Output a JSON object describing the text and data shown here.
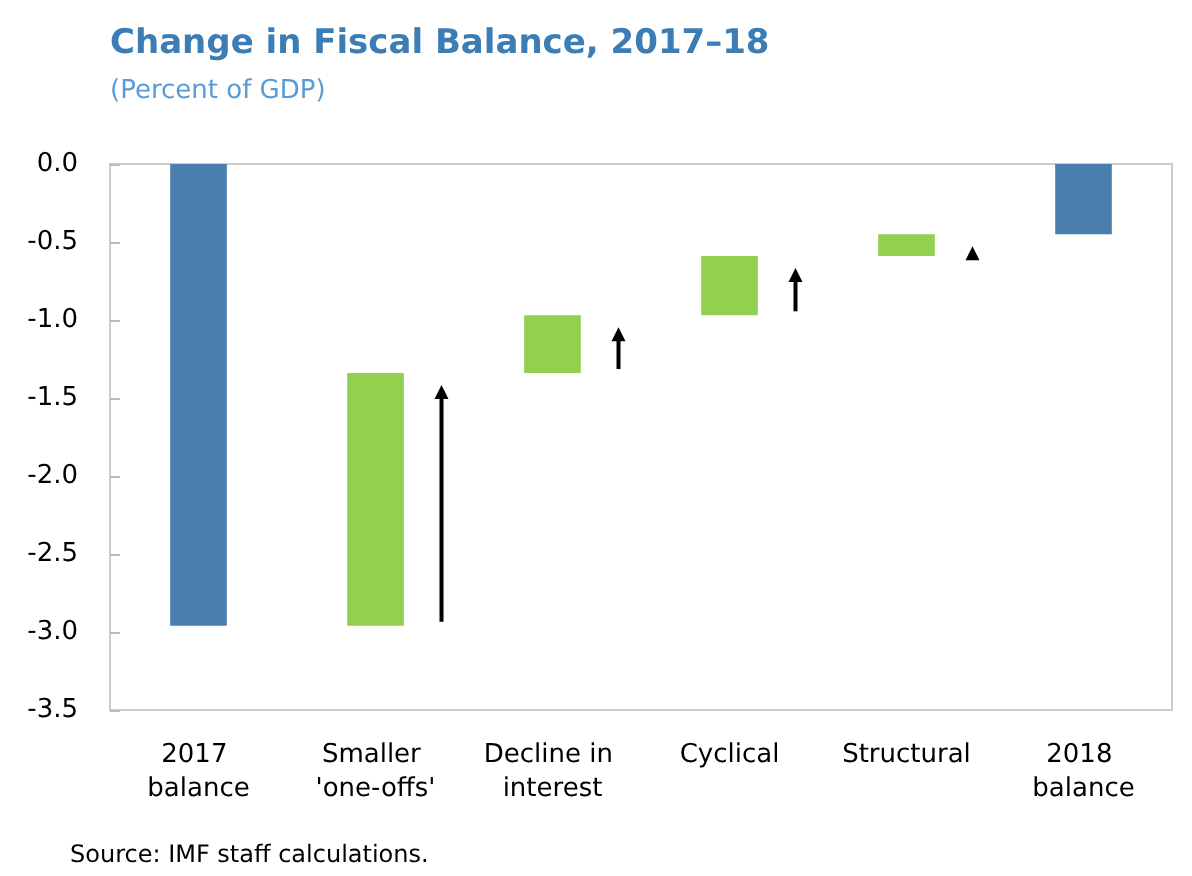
{
  "chart_data": {
    "type": "bar",
    "title": "Change in Fiscal Balance, 2017–18",
    "subtitle": "(Percent of GDP)",
    "categories": [
      "2017 balance",
      "Smaller 'one-offs'",
      "Decline in interest",
      "Cyclical",
      "Structural",
      "2018 balance"
    ],
    "values": [
      -2.96,
      1.62,
      0.37,
      0.38,
      0.14,
      -0.45
    ],
    "base": [
      0,
      -2.96,
      -1.34,
      -0.97,
      -0.59,
      0
    ],
    "colors": [
      "#4a7fad",
      "#92d050",
      "#92d050",
      "#92d050",
      "#92d050",
      "#4a7fad"
    ],
    "ylim": [
      -3.5,
      0
    ],
    "yticks": [
      {
        "value": -3.5,
        "label": "-3.5"
      },
      {
        "value": -3,
        "label": "-3.0"
      },
      {
        "value": -2.5,
        "label": "-2.5"
      },
      {
        "value": -2,
        "label": "-2.0"
      },
      {
        "value": -1.5,
        "label": "-1.5"
      },
      {
        "value": -1,
        "label": "-1.0"
      },
      {
        "value": -0.5,
        "label": "-0.5"
      },
      {
        "value": 0,
        "label": "0.0"
      }
    ],
    "grid": false,
    "annotations": [
      "Source: IMF staff calculations."
    ]
  }
}
